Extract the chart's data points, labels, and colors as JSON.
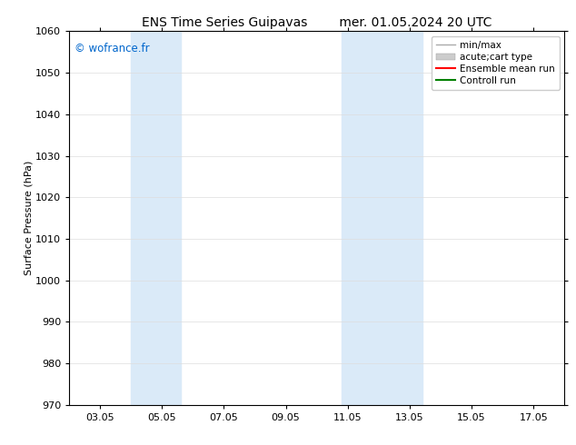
{
  "title_left": "ENS Time Series Guipavas",
  "title_right": "mer. 01.05.2024 20 UTC",
  "ylabel": "Surface Pressure (hPa)",
  "ylim": [
    970,
    1060
  ],
  "yticks": [
    970,
    980,
    990,
    1000,
    1010,
    1020,
    1030,
    1040,
    1050,
    1060
  ],
  "xlim": [
    2.0,
    18.0
  ],
  "xticks": [
    3,
    5,
    7,
    9,
    11,
    13,
    15,
    17
  ],
  "xticklabels": [
    "03.05",
    "05.05",
    "07.05",
    "09.05",
    "11.05",
    "13.05",
    "15.05",
    "17.05"
  ],
  "watermark": "© wofrance.fr",
  "watermark_color": "#0066cc",
  "bg_color": "#ffffff",
  "shaded_bands": [
    {
      "xmin": 4.0,
      "xmax": 5.6
    },
    {
      "xmin": 10.8,
      "xmax": 12.2
    },
    {
      "xmin": 12.2,
      "xmax": 13.4
    }
  ],
  "band_color": "#daeaf8",
  "legend_entries": [
    {
      "label": "min/max",
      "color": "#aaaaaa",
      "lw": 1.0,
      "ls": "-",
      "type": "line"
    },
    {
      "label": "acute;cart type",
      "color": "#cccccc",
      "lw": 8,
      "ls": "-",
      "type": "patch"
    },
    {
      "label": "Ensemble mean run",
      "color": "#ff0000",
      "lw": 1.5,
      "ls": "-",
      "type": "line"
    },
    {
      "label": "Controll run",
      "color": "#008000",
      "lw": 1.5,
      "ls": "-",
      "type": "line"
    }
  ],
  "grid_color": "#dddddd",
  "title_fontsize": 10,
  "tick_fontsize": 8,
  "legend_fontsize": 7.5,
  "ylabel_fontsize": 8
}
